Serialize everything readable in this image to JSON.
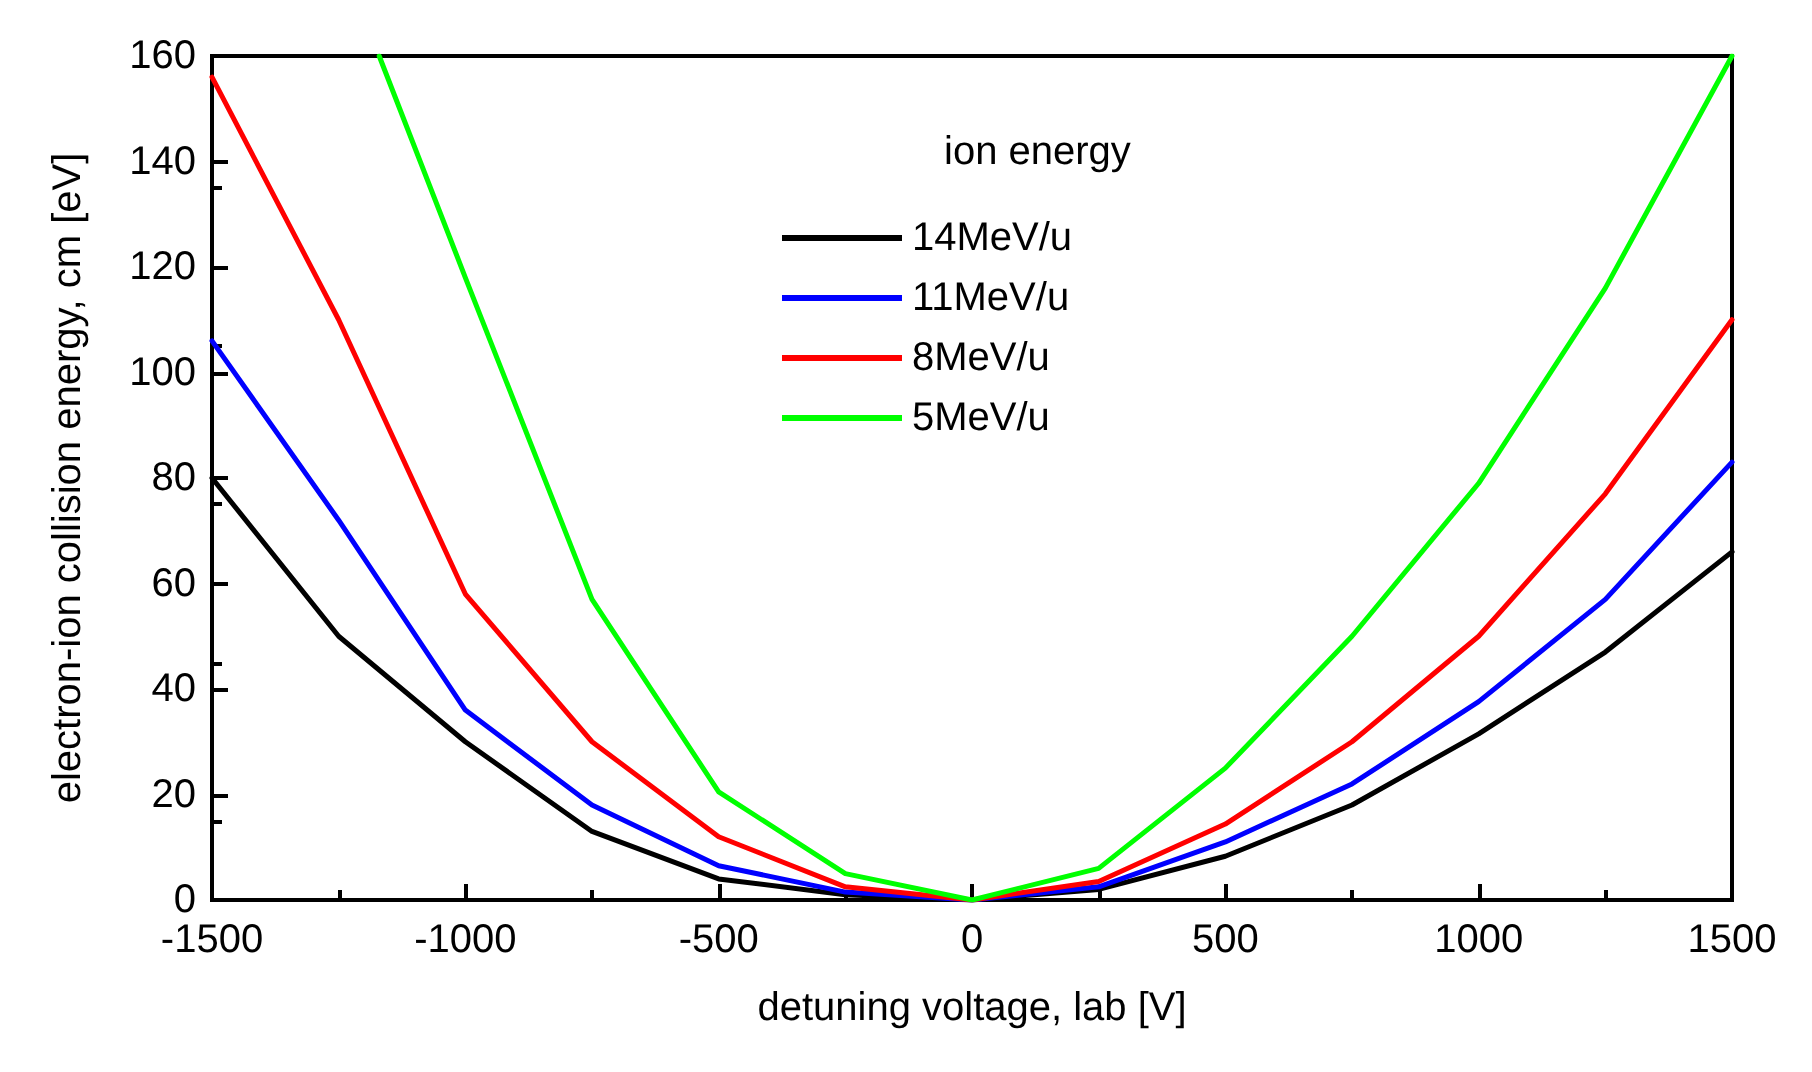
{
  "chart_data": {
    "type": "line",
    "xlabel": "detuning voltage, lab [V]",
    "ylabel": "electron-ion collision energy, cm [eV]",
    "legend_title": "ion energy",
    "legend": "top",
    "grid": false,
    "marker": "none",
    "line_style": "solid",
    "x": [
      -1500,
      -1250,
      -1000,
      -750,
      -500,
      -250,
      0,
      250,
      500,
      750,
      1000,
      1250,
      1500
    ],
    "xlim": [
      -1500,
      1500
    ],
    "xticks": [
      -1500,
      -1000,
      -500,
      0,
      500,
      1000,
      1500
    ],
    "ylim": [
      0,
      160
    ],
    "yticks": [
      0,
      20,
      40,
      60,
      80,
      100,
      120,
      140,
      160
    ],
    "series": [
      {
        "name": "14MeV/u",
        "color": "#000000",
        "values": [
          80,
          50,
          30,
          13,
          4,
          1,
          0,
          2,
          8.3,
          18,
          31.5,
          47,
          66
        ]
      },
      {
        "name": "11MeV/u",
        "color": "#0000ff",
        "values": [
          106,
          72,
          36,
          18,
          6.5,
          1.5,
          0,
          2.5,
          11,
          22,
          37.6,
          57,
          83
        ]
      },
      {
        "name": "8MeV/u",
        "color": "#ff0000",
        "values": [
          156,
          110,
          58,
          30,
          12,
          2.5,
          0,
          3.5,
          14.4,
          30,
          50,
          77,
          110
        ]
      },
      {
        "name": "5MeV/u",
        "color": "#00ff00",
        "x": [
          -1170,
          -1000,
          -750,
          -500,
          -250,
          0,
          250,
          500,
          750,
          1000,
          1250,
          1500
        ],
        "values": [
          160,
          118,
          57,
          20.5,
          5,
          0,
          6,
          25,
          50,
          79,
          116,
          160
        ]
      }
    ]
  }
}
